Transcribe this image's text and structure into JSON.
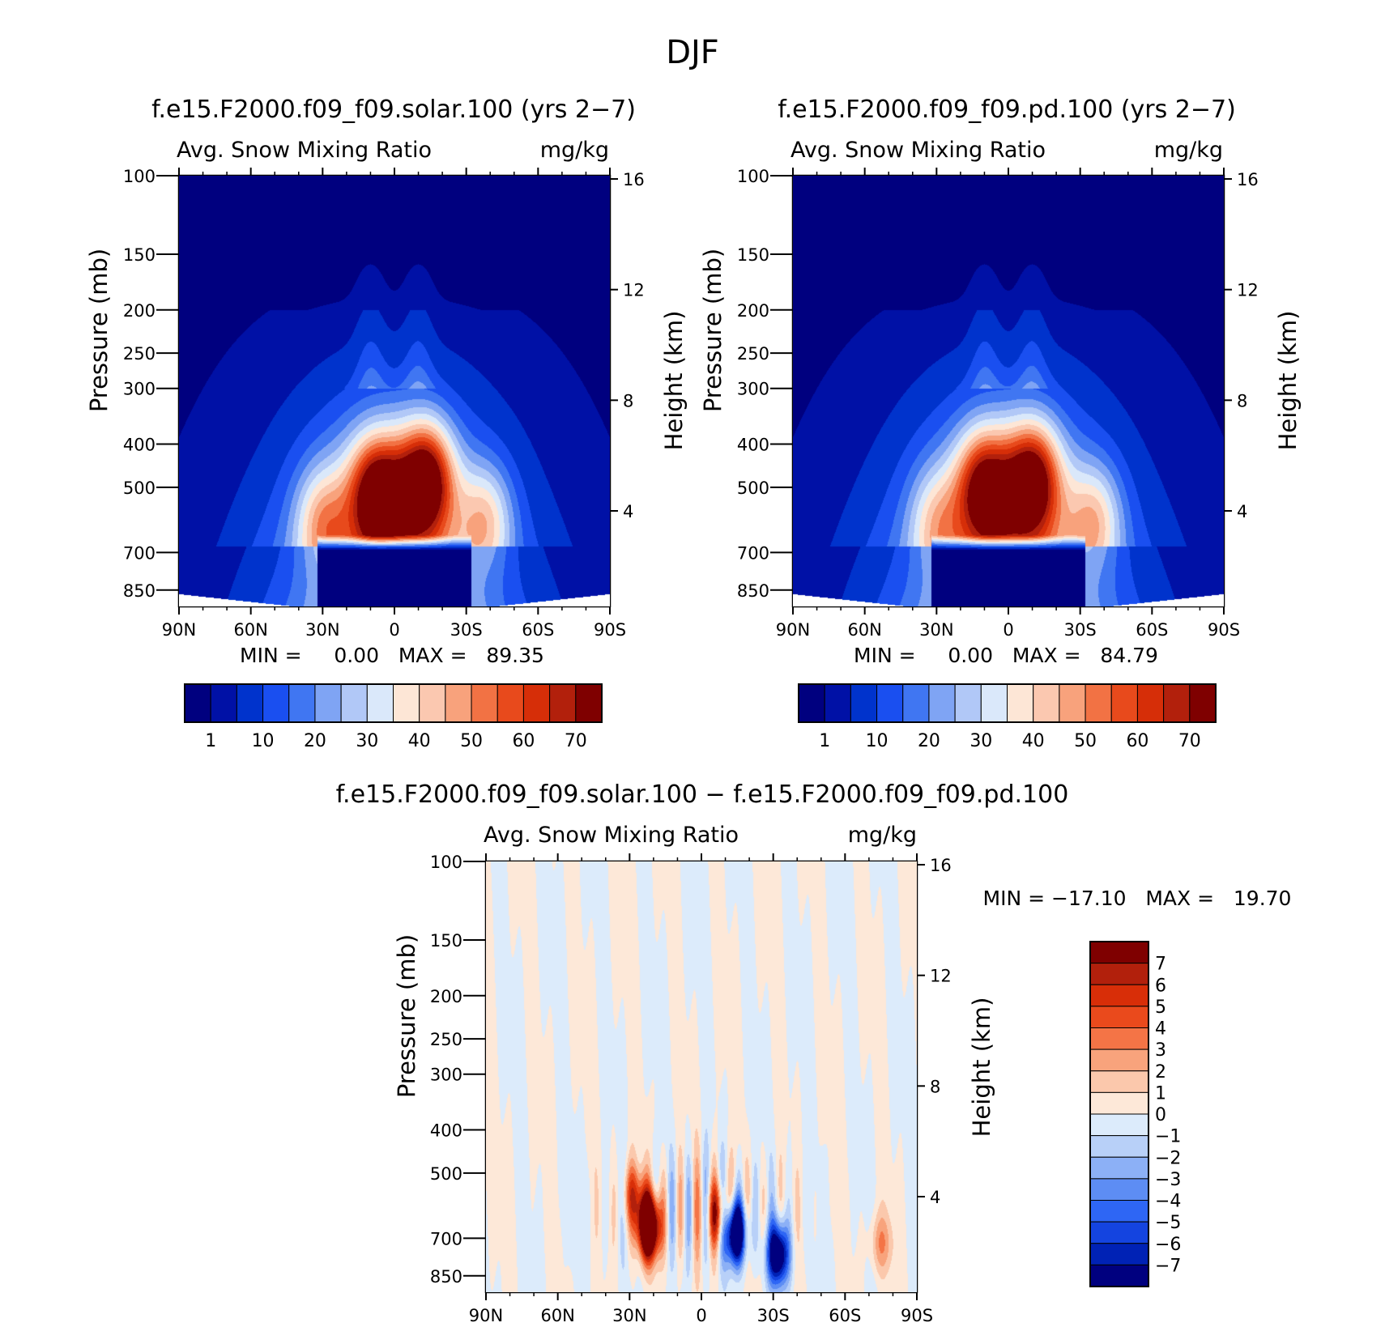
{
  "title": "DJF",
  "colors": {
    "seq": [
      "#00007f",
      "#0011a6",
      "#0033cc",
      "#1a4ff0",
      "#4076f2",
      "#7fa4f4",
      "#b1c8f7",
      "#dae8fa",
      "#fde6d6",
      "#fbc8b0",
      "#f8a27c",
      "#f27244",
      "#e84a1c",
      "#d62e08",
      "#b2200c",
      "#7f0000"
    ],
    "diff": [
      "#00007f",
      "#0022b5",
      "#1444e0",
      "#2e66f5",
      "#5d8df4",
      "#8cb0f6",
      "#b8d0f8",
      "#dcebfb",
      "#fde8d8",
      "#fbc8ac",
      "#f8a37c",
      "#f47446",
      "#ea4a1c",
      "#d82e08",
      "#b2200c",
      "#7f0000"
    ]
  },
  "panels": [
    {
      "id": "solar",
      "title": "f.e15.F2000.f09_f09.solar.100 (yrs 2−7)",
      "left_label": "Avg. Snow Mixing Ratio",
      "right_label": "mg/kg",
      "ylabel": "Pressure (mb)",
      "y2label": "Height (km)",
      "stats": "MIN =     0.00   MAX =   89.35"
    },
    {
      "id": "pd",
      "title": "f.e15.F2000.f09_f09.pd.100 (yrs 2−7)",
      "left_label": "Avg. Snow Mixing Ratio",
      "right_label": "mg/kg",
      "ylabel": "Pressure (mb)",
      "y2label": "Height (km)",
      "stats": "MIN =     0.00   MAX =   84.79"
    },
    {
      "id": "diff",
      "title": "f.e15.F2000.f09_f09.solar.100 − f.e15.F2000.f09_f09.pd.100",
      "left_label": "Avg. Snow Mixing Ratio",
      "right_label": "mg/kg",
      "ylabel": "Pressure (mb)",
      "y2label": "Height (km)",
      "stats": "MIN = −17.10   MAX =   19.70"
    }
  ],
  "chart_data": [
    {
      "type": "heatmap",
      "name": "f.e15.F2000.f09_f09.solar.100 (yrs 2−7)",
      "x_ticks": [
        "90N",
        "60N",
        "30N",
        "0",
        "30S",
        "60S",
        "90S"
      ],
      "x_values": [
        90,
        60,
        30,
        0,
        -30,
        -60,
        -90
      ],
      "y_ticks": [
        "100",
        "150",
        "200",
        "250",
        "300",
        "400",
        "500",
        "700",
        "850"
      ],
      "y_values": [
        100,
        150,
        200,
        250,
        300,
        400,
        500,
        700,
        850
      ],
      "y_scale": "log",
      "y_inverted": true,
      "ylim": [
        100,
        925
      ],
      "y2_ticks": [
        "4",
        "8",
        "12",
        "16"
      ],
      "y2_values": [
        4,
        8,
        12,
        16
      ],
      "colorbar_labels": [
        "1",
        "10",
        "20",
        "30",
        "40",
        "50",
        "60",
        "70"
      ],
      "colorbar_levels": [
        1,
        5,
        10,
        15,
        20,
        25,
        30,
        35,
        40,
        45,
        50,
        55,
        60,
        65,
        70
      ],
      "min": 0.0,
      "max": 89.35,
      "features": [
        {
          "lat": 7,
          "p": 520,
          "value": 80
        },
        {
          "lat": -13,
          "p": 480,
          "value": 85
        },
        {
          "lat": 30,
          "p": 600,
          "value": 55
        },
        {
          "lat": -38,
          "p": 590,
          "value": 55
        }
      ]
    },
    {
      "type": "heatmap",
      "name": "f.e15.F2000.f09_f09.pd.100 (yrs 2−7)",
      "x_ticks": [
        "90N",
        "60N",
        "30N",
        "0",
        "30S",
        "60S",
        "90S"
      ],
      "x_values": [
        90,
        60,
        30,
        0,
        -30,
        -60,
        -90
      ],
      "y_ticks": [
        "100",
        "150",
        "200",
        "250",
        "300",
        "400",
        "500",
        "700",
        "850"
      ],
      "y_values": [
        100,
        150,
        200,
        250,
        300,
        400,
        500,
        700,
        850
      ],
      "y_scale": "log",
      "y_inverted": true,
      "ylim": [
        100,
        925
      ],
      "y2_ticks": [
        "4",
        "8",
        "12",
        "16"
      ],
      "y2_values": [
        4,
        8,
        12,
        16
      ],
      "colorbar_labels": [
        "1",
        "10",
        "20",
        "30",
        "40",
        "50",
        "60",
        "70"
      ],
      "colorbar_levels": [
        1,
        5,
        10,
        15,
        20,
        25,
        30,
        35,
        40,
        45,
        50,
        55,
        60,
        65,
        70
      ],
      "min": 0.0,
      "max": 84.79,
      "features": [
        {
          "lat": 10,
          "p": 500,
          "value": 75
        },
        {
          "lat": -10,
          "p": 480,
          "value": 80
        },
        {
          "lat": 30,
          "p": 600,
          "value": 50
        },
        {
          "lat": -36,
          "p": 590,
          "value": 55
        }
      ]
    },
    {
      "type": "heatmap",
      "name": "f.e15.F2000.f09_f09.solar.100 − f.e15.F2000.f09_f09.pd.100",
      "x_ticks": [
        "90N",
        "60N",
        "30N",
        "0",
        "30S",
        "60S",
        "90S"
      ],
      "x_values": [
        90,
        60,
        30,
        0,
        -30,
        -60,
        -90
      ],
      "y_ticks": [
        "100",
        "150",
        "200",
        "250",
        "300",
        "400",
        "500",
        "700",
        "850"
      ],
      "y_values": [
        100,
        150,
        200,
        250,
        300,
        400,
        500,
        700,
        850
      ],
      "y_scale": "log",
      "y_inverted": true,
      "ylim": [
        100,
        925
      ],
      "y2_ticks": [
        "4",
        "8",
        "12",
        "16"
      ],
      "y2_values": [
        4,
        8,
        12,
        16
      ],
      "colorbar_labels": [
        "7",
        "6",
        "5",
        "4",
        "3",
        "2",
        "1",
        "0",
        "−1",
        "−2",
        "−3",
        "−4",
        "−5",
        "−6",
        "−7"
      ],
      "colorbar_levels": [
        7,
        6,
        5,
        4,
        3,
        2,
        1,
        0,
        -1,
        -2,
        -3,
        -4,
        -5,
        -6,
        -7
      ],
      "min": -17.1,
      "max": 19.7,
      "features": [
        {
          "lat": 22,
          "p": 660,
          "value": 15
        },
        {
          "lat": 28,
          "p": 560,
          "value": 5
        },
        {
          "lat": -14,
          "p": 680,
          "value": -12
        },
        {
          "lat": -7,
          "p": 620,
          "value": 6
        },
        {
          "lat": -32,
          "p": 760,
          "value": -10
        },
        {
          "lat": -75,
          "p": 720,
          "value": 3
        }
      ]
    }
  ]
}
